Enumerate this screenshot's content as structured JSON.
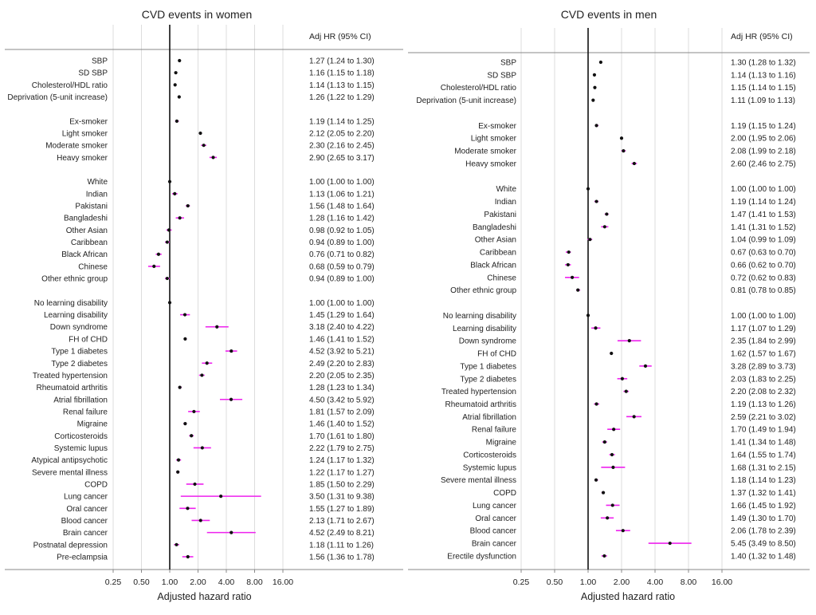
{
  "chart_data": [
    {
      "type": "forest",
      "title": "CVD events in women",
      "column_header": "Adj HR (95% CI)",
      "xlabel": "Adjusted hazard ratio",
      "xscale": "log2",
      "xlim": [
        0.25,
        16
      ],
      "xticks": [
        0.25,
        0.5,
        1,
        2,
        4,
        8,
        16
      ],
      "xtick_labels": [
        "0.25",
        "0.50",
        "1.00",
        "2.00",
        "4.00",
        "8.00",
        "16.00"
      ],
      "reference_line": 1,
      "rows": [
        {
          "label": "SBP",
          "hr": 1.27,
          "lo": 1.24,
          "hi": 1.3,
          "text": "1.27 (1.24 to 1.30)"
        },
        {
          "label": "SD SBP",
          "hr": 1.16,
          "lo": 1.15,
          "hi": 1.18,
          "text": "1.16 (1.15 to 1.18)"
        },
        {
          "label": "Cholesterol/HDL ratio",
          "hr": 1.14,
          "lo": 1.13,
          "hi": 1.15,
          "text": "1.14 (1.13 to 1.15)"
        },
        {
          "label": "Deprivation (5-unit increase)",
          "hr": 1.26,
          "lo": 1.22,
          "hi": 1.29,
          "text": "1.26 (1.22 to 1.29)"
        },
        null,
        {
          "label": "Ex-smoker",
          "hr": 1.19,
          "lo": 1.14,
          "hi": 1.25,
          "text": "1.19 (1.14 to 1.25)"
        },
        {
          "label": "Light smoker",
          "hr": 2.12,
          "lo": 2.05,
          "hi": 2.2,
          "text": "2.12 (2.05 to 2.20)"
        },
        {
          "label": "Moderate smoker",
          "hr": 2.3,
          "lo": 2.16,
          "hi": 2.45,
          "text": "2.30 (2.16 to 2.45)"
        },
        {
          "label": "Heavy smoker",
          "hr": 2.9,
          "lo": 2.65,
          "hi": 3.17,
          "text": "2.90 (2.65 to 3.17)"
        },
        null,
        {
          "label": "White",
          "hr": 1.0,
          "lo": 1.0,
          "hi": 1.0,
          "text": "1.00 (1.00 to 1.00)"
        },
        {
          "label": "Indian",
          "hr": 1.13,
          "lo": 1.06,
          "hi": 1.21,
          "text": "1.13 (1.06 to 1.21)"
        },
        {
          "label": "Pakistani",
          "hr": 1.56,
          "lo": 1.48,
          "hi": 1.64,
          "text": "1.56 (1.48 to 1.64)"
        },
        {
          "label": "Bangladeshi",
          "hr": 1.28,
          "lo": 1.16,
          "hi": 1.42,
          "text": "1.28 (1.16 to 1.42)"
        },
        {
          "label": "Other Asian",
          "hr": 0.98,
          "lo": 0.92,
          "hi": 1.05,
          "text": "0.98 (0.92 to 1.05)"
        },
        {
          "label": "Caribbean",
          "hr": 0.94,
          "lo": 0.89,
          "hi": 1.0,
          "text": "0.94 (0.89 to 1.00)"
        },
        {
          "label": "Black African",
          "hr": 0.76,
          "lo": 0.71,
          "hi": 0.82,
          "text": "0.76 (0.71 to 0.82)"
        },
        {
          "label": "Chinese",
          "hr": 0.68,
          "lo": 0.59,
          "hi": 0.79,
          "text": "0.68 (0.59 to 0.79)"
        },
        {
          "label": "Other ethnic group",
          "hr": 0.94,
          "lo": 0.89,
          "hi": 1.0,
          "text": "0.94 (0.89 to 1.00)"
        },
        null,
        {
          "label": "No learning disability",
          "hr": 1.0,
          "lo": 1.0,
          "hi": 1.0,
          "text": "1.00 (1.00 to 1.00)"
        },
        {
          "label": "Learning disability",
          "hr": 1.45,
          "lo": 1.29,
          "hi": 1.64,
          "text": "1.45 (1.29 to 1.64)"
        },
        {
          "label": "Down syndrome",
          "hr": 3.18,
          "lo": 2.4,
          "hi": 4.22,
          "text": "3.18 (2.40 to 4.22)"
        },
        {
          "label": "FH of CHD",
          "hr": 1.46,
          "lo": 1.41,
          "hi": 1.52,
          "text": "1.46 (1.41 to 1.52)"
        },
        {
          "label": "Type 1 diabetes",
          "hr": 4.52,
          "lo": 3.92,
          "hi": 5.21,
          "text": "4.52 (3.92 to 5.21)"
        },
        {
          "label": "Type 2 diabetes",
          "hr": 2.49,
          "lo": 2.2,
          "hi": 2.83,
          "text": "2.49 (2.20 to 2.83)"
        },
        {
          "label": "Treated hypertension",
          "hr": 2.2,
          "lo": 2.05,
          "hi": 2.35,
          "text": "2.20 (2.05 to 2.35)"
        },
        {
          "label": "Rheumatoid arthritis",
          "hr": 1.28,
          "lo": 1.23,
          "hi": 1.34,
          "text": "1.28 (1.23 to 1.34)"
        },
        {
          "label": "Atrial fibrillation",
          "hr": 4.5,
          "lo": 3.42,
          "hi": 5.92,
          "text": "4.50 (3.42 to 5.92)"
        },
        {
          "label": "Renal failure",
          "hr": 1.81,
          "lo": 1.57,
          "hi": 2.09,
          "text": "1.81 (1.57 to 2.09)"
        },
        {
          "label": "Migraine",
          "hr": 1.46,
          "lo": 1.4,
          "hi": 1.52,
          "text": "1.46 (1.40 to 1.52)"
        },
        {
          "label": "Corticosteroids",
          "hr": 1.7,
          "lo": 1.61,
          "hi": 1.8,
          "text": "1.70 (1.61 to 1.80)"
        },
        {
          "label": "Systemic lupus",
          "hr": 2.22,
          "lo": 1.79,
          "hi": 2.75,
          "text": "2.22 (1.79 to 2.75)"
        },
        {
          "label": "Atypical antipsychotic",
          "hr": 1.24,
          "lo": 1.17,
          "hi": 1.32,
          "text": "1.24 (1.17 to 1.32)"
        },
        {
          "label": "Severe mental illness",
          "hr": 1.22,
          "lo": 1.17,
          "hi": 1.27,
          "text": "1.22 (1.17 to 1.27)"
        },
        {
          "label": "COPD",
          "hr": 1.85,
          "lo": 1.5,
          "hi": 2.29,
          "text": "1.85 (1.50 to 2.29)"
        },
        {
          "label": "Lung cancer",
          "hr": 3.5,
          "lo": 1.31,
          "hi": 9.38,
          "text": "3.50 (1.31 to 9.38)"
        },
        {
          "label": "Oral cancer",
          "hr": 1.55,
          "lo": 1.27,
          "hi": 1.89,
          "text": "1.55 (1.27 to 1.89)"
        },
        {
          "label": "Blood cancer",
          "hr": 2.13,
          "lo": 1.71,
          "hi": 2.67,
          "text": "2.13 (1.71 to 2.67)"
        },
        {
          "label": "Brain cancer",
          "hr": 4.52,
          "lo": 2.49,
          "hi": 8.21,
          "text": "4.52 (2.49 to 8.21)"
        },
        {
          "label": "Postnatal depression",
          "hr": 1.18,
          "lo": 1.11,
          "hi": 1.26,
          "text": "1.18 (1.11 to 1.26)"
        },
        {
          "label": "Pre-eclampsia",
          "hr": 1.56,
          "lo": 1.36,
          "hi": 1.78,
          "text": "1.56 (1.36 to 1.78)"
        }
      ]
    },
    {
      "type": "forest",
      "title": "CVD events in men",
      "column_header": "Adj HR (95% CI)",
      "xlabel": "Adjusted hazard ratio",
      "xscale": "log2",
      "xlim": [
        0.25,
        16
      ],
      "xticks": [
        0.25,
        0.5,
        1,
        2,
        4,
        8,
        16
      ],
      "xtick_labels": [
        "0.25",
        "0.50",
        "1.00",
        "2.00",
        "4.00",
        "8.00",
        "16.00"
      ],
      "reference_line": 1,
      "rows": [
        {
          "label": "SBP",
          "hr": 1.3,
          "lo": 1.28,
          "hi": 1.32,
          "text": "1.30 (1.28 to 1.32)"
        },
        {
          "label": "SD SBP",
          "hr": 1.14,
          "lo": 1.13,
          "hi": 1.16,
          "text": "1.14 (1.13 to 1.16)"
        },
        {
          "label": "Cholesterol/HDL ratio",
          "hr": 1.15,
          "lo": 1.14,
          "hi": 1.15,
          "text": "1.15 (1.14 to 1.15)"
        },
        {
          "label": "Deprivation (5-unit increase)",
          "hr": 1.11,
          "lo": 1.09,
          "hi": 1.13,
          "text": "1.11 (1.09 to 1.13)"
        },
        null,
        {
          "label": "Ex-smoker",
          "hr": 1.19,
          "lo": 1.15,
          "hi": 1.24,
          "text": "1.19 (1.15 to 1.24)"
        },
        {
          "label": "Light smoker",
          "hr": 2.0,
          "lo": 1.95,
          "hi": 2.06,
          "text": "2.00 (1.95 to 2.06)"
        },
        {
          "label": "Moderate smoker",
          "hr": 2.08,
          "lo": 1.99,
          "hi": 2.18,
          "text": "2.08 (1.99 to 2.18)"
        },
        {
          "label": "Heavy smoker",
          "hr": 2.6,
          "lo": 2.46,
          "hi": 2.75,
          "text": "2.60 (2.46 to 2.75)"
        },
        null,
        {
          "label": "White",
          "hr": 1.0,
          "lo": 1.0,
          "hi": 1.0,
          "text": "1.00 (1.00 to 1.00)"
        },
        {
          "label": "Indian",
          "hr": 1.19,
          "lo": 1.14,
          "hi": 1.24,
          "text": "1.19 (1.14 to 1.24)"
        },
        {
          "label": "Pakistani",
          "hr": 1.47,
          "lo": 1.41,
          "hi": 1.53,
          "text": "1.47 (1.41 to 1.53)"
        },
        {
          "label": "Bangladeshi",
          "hr": 1.41,
          "lo": 1.31,
          "hi": 1.52,
          "text": "1.41 (1.31 to 1.52)"
        },
        {
          "label": "Other Asian",
          "hr": 1.04,
          "lo": 0.99,
          "hi": 1.09,
          "text": "1.04 (0.99 to 1.09)"
        },
        {
          "label": "Caribbean",
          "hr": 0.67,
          "lo": 0.63,
          "hi": 0.7,
          "text": "0.67 (0.63 to 0.70)"
        },
        {
          "label": "Black African",
          "hr": 0.66,
          "lo": 0.62,
          "hi": 0.7,
          "text": "0.66 (0.62 to 0.70)"
        },
        {
          "label": "Chinese",
          "hr": 0.72,
          "lo": 0.62,
          "hi": 0.83,
          "text": "0.72 (0.62 to 0.83)"
        },
        {
          "label": "Other ethnic group",
          "hr": 0.81,
          "lo": 0.78,
          "hi": 0.85,
          "text": "0.81 (0.78 to 0.85)"
        },
        null,
        {
          "label": "No learning disability",
          "hr": 1.0,
          "lo": 1.0,
          "hi": 1.0,
          "text": "1.00 (1.00 to 1.00)"
        },
        {
          "label": "Learning disability",
          "hr": 1.17,
          "lo": 1.07,
          "hi": 1.29,
          "text": "1.17 (1.07 to 1.29)"
        },
        {
          "label": "Down syndrome",
          "hr": 2.35,
          "lo": 1.84,
          "hi": 2.99,
          "text": "2.35 (1.84 to 2.99)"
        },
        {
          "label": "FH of CHD",
          "hr": 1.62,
          "lo": 1.57,
          "hi": 1.67,
          "text": "1.62 (1.57 to 1.67)"
        },
        {
          "label": "Type 1 diabetes",
          "hr": 3.28,
          "lo": 2.89,
          "hi": 3.73,
          "text": "3.28 (2.89 to 3.73)"
        },
        {
          "label": "Type 2 diabetes",
          "hr": 2.03,
          "lo": 1.83,
          "hi": 2.25,
          "text": "2.03 (1.83 to 2.25)"
        },
        {
          "label": "Treated hypertension",
          "hr": 2.2,
          "lo": 2.08,
          "hi": 2.32,
          "text": "2.20 (2.08 to 2.32)"
        },
        {
          "label": "Rheumatoid arthritis",
          "hr": 1.19,
          "lo": 1.13,
          "hi": 1.26,
          "text": "1.19 (1.13 to 1.26)"
        },
        {
          "label": "Atrial fibrillation",
          "hr": 2.59,
          "lo": 2.21,
          "hi": 3.02,
          "text": "2.59 (2.21 to 3.02)"
        },
        {
          "label": "Renal failure",
          "hr": 1.7,
          "lo": 1.49,
          "hi": 1.94,
          "text": "1.70 (1.49 to 1.94)"
        },
        {
          "label": "Migraine",
          "hr": 1.41,
          "lo": 1.34,
          "hi": 1.48,
          "text": "1.41 (1.34 to 1.48)"
        },
        {
          "label": "Corticosteroids",
          "hr": 1.64,
          "lo": 1.55,
          "hi": 1.74,
          "text": "1.64 (1.55 to 1.74)"
        },
        {
          "label": "Systemic lupus",
          "hr": 1.68,
          "lo": 1.31,
          "hi": 2.15,
          "text": "1.68 (1.31 to 2.15)"
        },
        {
          "label": "Severe mental illness",
          "hr": 1.18,
          "lo": 1.14,
          "hi": 1.23,
          "text": "1.18 (1.14 to 1.23)"
        },
        {
          "label": "COPD",
          "hr": 1.37,
          "lo": 1.32,
          "hi": 1.41,
          "text": "1.37 (1.32 to 1.41)"
        },
        {
          "label": "Lung cancer",
          "hr": 1.66,
          "lo": 1.45,
          "hi": 1.92,
          "text": "1.66 (1.45 to 1.92)"
        },
        {
          "label": "Oral cancer",
          "hr": 1.49,
          "lo": 1.3,
          "hi": 1.7,
          "text": "1.49 (1.30 to 1.70)"
        },
        {
          "label": "Blood cancer",
          "hr": 2.06,
          "lo": 1.78,
          "hi": 2.39,
          "text": "2.06 (1.78 to 2.39)"
        },
        {
          "label": "Brain cancer",
          "hr": 5.45,
          "lo": 3.49,
          "hi": 8.5,
          "text": "5.45 (3.49 to 8.50)"
        },
        {
          "label": "Erectile dysfunction",
          "hr": 1.4,
          "lo": 1.32,
          "hi": 1.48,
          "text": "1.40 (1.32 to 1.48)"
        }
      ]
    }
  ],
  "colors": {
    "ci_line": "#ee22ee",
    "point": "#111111",
    "reference": "#111111",
    "grid": "#dddddd",
    "frame": "#888888",
    "text": "#222222"
  }
}
